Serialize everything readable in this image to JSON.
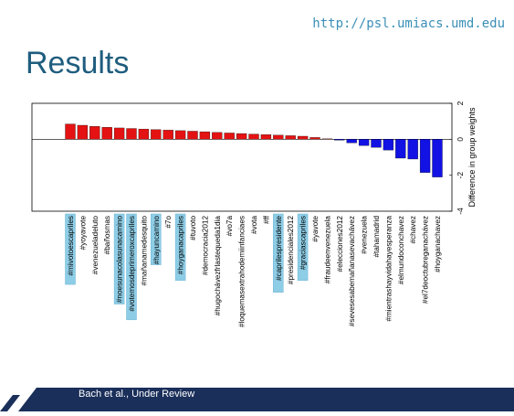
{
  "header": {
    "url": "http://psl.umiacs.umd.edu",
    "title": "Results"
  },
  "footer": {
    "citation": "Bach et al., Under Review"
  },
  "colors": {
    "positive": "#e41212",
    "negative": "#1212e4",
    "highlight": "#8ecde6",
    "title": "#1f5d7e",
    "footer_band": "#1a2f5a"
  },
  "chart_data": {
    "type": "bar",
    "ylabel": "Difference in group weights",
    "ylim": [
      -4,
      2
    ],
    "yticks": [
      -4,
      -2,
      0,
      2
    ],
    "categories": [
      "#mivotoescapriles",
      "#yoyavote",
      "#venezueladeluto",
      "#bañosmas",
      "#noesunacolasunacamino",
      "#votemosdeprimeroxcapriles",
      "#mañanamedesquito",
      "#hayuncamino",
      "#7o",
      "#hoyganacapriles",
      "#tuvoto",
      "#democracia2012",
      "#hugochávezfrlastequeda1dia",
      "#vo7a",
      "#loquemasextrahodemiinfanciaes",
      "#vota",
      "#ff",
      "#caprilespresidente",
      "#presidenciales2012",
      "#graciascapriles",
      "#yavote",
      "#fraudeenvenezuela",
      "#elecciones2012",
      "#sevesesabemañanasevachávez",
      "#venezuela",
      "#tahamadrid",
      "#mientrashayvidahayesperanza",
      "#elmundoconchavez",
      "#chavez",
      "#el7deoctubreganachávez",
      "#hoyganachavez"
    ],
    "values": [
      0.85,
      0.78,
      0.72,
      0.67,
      0.63,
      0.6,
      0.57,
      0.54,
      0.51,
      0.48,
      0.45,
      0.42,
      0.38,
      0.35,
      0.32,
      0.29,
      0.26,
      0.23,
      0.2,
      0.17,
      0.1,
      0.03,
      -0.05,
      -0.2,
      -0.35,
      -0.45,
      -0.6,
      -1.05,
      -1.1,
      -1.85,
      -2.1
    ],
    "highlighted": [
      "#mivotoescapriles",
      "#noesunacolasunacamino",
      "#votemosdeprimeroxcapriles",
      "#hayuncamino",
      "#hoyganacapriles",
      "#caprilespresidente",
      "#graciascapriles"
    ]
  }
}
